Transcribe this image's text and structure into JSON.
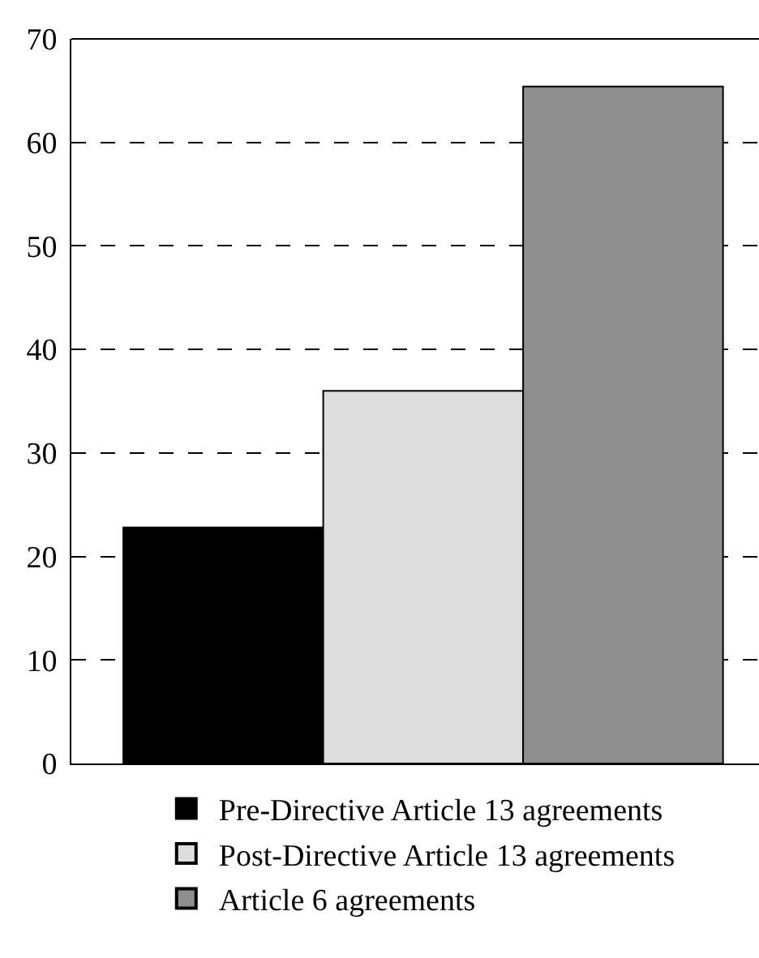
{
  "chart_data": {
    "type": "bar",
    "categories": [
      null,
      null,
      null
    ],
    "series": [
      {
        "name": "Pre-Directive Article 13 agreements",
        "color": "#000000",
        "values": [
          22.8,
          null,
          null
        ]
      },
      {
        "name": "Post-Directive Article 13 agreements",
        "color": "#dddddd",
        "values": [
          null,
          36,
          null
        ]
      },
      {
        "name": "Article 6 agreements",
        "color": "#8f8f8f",
        "values": [
          null,
          null,
          65.4
        ]
      }
    ],
    "ylim": [
      0,
      70
    ],
    "yticks": [
      0,
      10,
      20,
      30,
      40,
      50,
      60,
      70
    ],
    "grid": "y",
    "legend": "bottom",
    "tick_labels": "y"
  }
}
